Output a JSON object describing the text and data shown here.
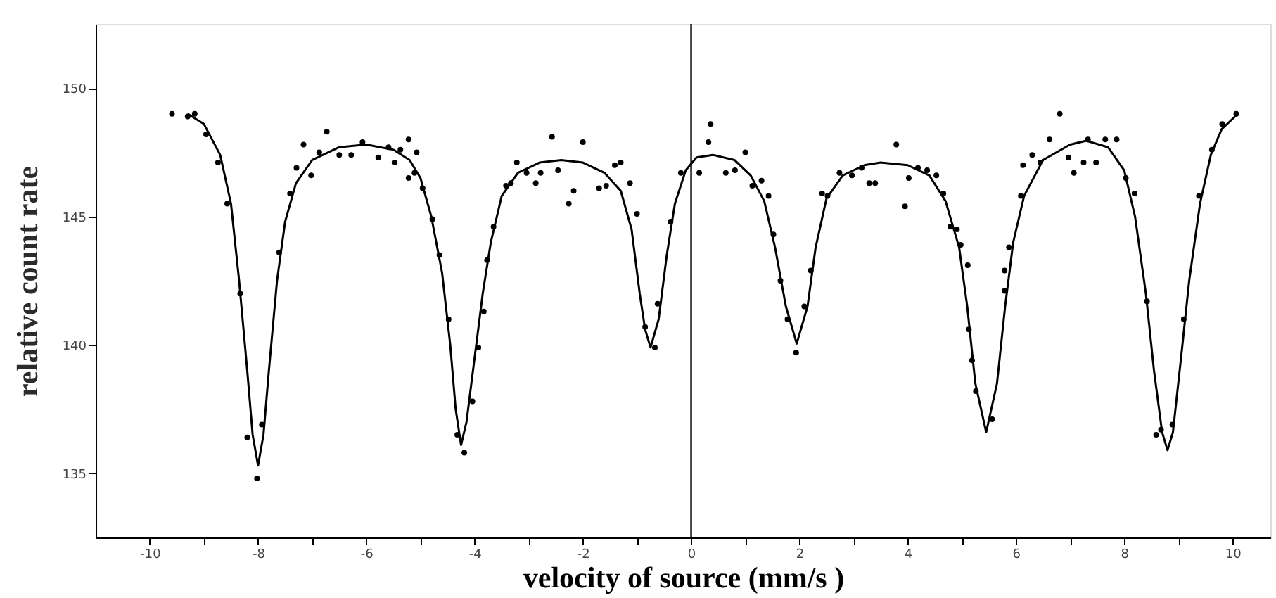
{
  "chart_data": {
    "type": "scatter",
    "xlabel": "velocity of source (mm/s )",
    "ylabel": "relative count rate",
    "xlim": [
      -11,
      10.7
    ],
    "ylim": [
      132.5,
      152.5
    ],
    "xticks": [
      -10,
      {
        "value": -9,
        "label": null
      },
      -8,
      {
        "value": -7,
        "label": null
      },
      -6,
      {
        "value": -5,
        "label": null
      },
      -4,
      {
        "value": -3,
        "label": null
      },
      -2,
      {
        "value": -1,
        "label": null
      },
      0,
      {
        "value": 1,
        "label": null
      },
      2,
      {
        "value": 3,
        "label": null
      },
      4,
      {
        "value": 5,
        "label": null
      },
      6,
      {
        "value": 7,
        "label": null
      },
      8,
      {
        "value": 9,
        "label": null
      },
      10
    ],
    "yticks": [
      150,
      145,
      140,
      135
    ],
    "grid": false,
    "marker": "circle",
    "ref_lines": [
      {
        "axis": "x",
        "value": 0,
        "color": "#000000"
      }
    ],
    "series": [
      {
        "color": "#000000",
        "x": [
          -9.59,
          -9.3,
          -9.17,
          -8.96,
          -8.74,
          -8.57,
          -8.33,
          -8.2,
          -8.02,
          -7.93,
          -7.61,
          -7.41,
          -7.29,
          -7.16,
          -7.02,
          -6.87,
          -6.73,
          -6.5,
          -6.28,
          -6.07,
          -5.78,
          -5.59,
          -5.48,
          -5.37,
          -5.22,
          -5.22,
          -5.07,
          -5.11,
          -4.96,
          -4.78,
          -4.65,
          -4.48,
          -4.32,
          -4.19,
          -4.04,
          -3.93,
          -3.83,
          -3.77,
          -3.65,
          -3.42,
          -3.33,
          -3.22,
          -3.04,
          -2.87,
          -2.78,
          -2.57,
          -2.46,
          -2.26,
          -2.17,
          -2.0,
          -1.7,
          -1.57,
          -1.41,
          -1.3,
          -1.13,
          -1.0,
          -0.85,
          -0.67,
          -0.62,
          -0.38,
          -0.19,
          0.15,
          0.32,
          0.36,
          0.64,
          0.81,
          1.0,
          1.13,
          1.3,
          1.43,
          1.52,
          1.65,
          1.78,
          1.94,
          2.09,
          2.21,
          2.42,
          2.52,
          2.74,
          2.97,
          3.15,
          3.29,
          3.4,
          3.79,
          3.95,
          4.02,
          4.19,
          4.36,
          4.53,
          4.66,
          4.79,
          4.91,
          4.98,
          5.11,
          5.13,
          5.19,
          5.26,
          5.56,
          5.79,
          5.79,
          5.87,
          6.09,
          6.13,
          6.3,
          6.45,
          6.62,
          6.81,
          6.97,
          7.07,
          7.25,
          7.33,
          7.48,
          7.65,
          7.86,
          8.03,
          8.19,
          8.42,
          8.59,
          8.68,
          8.89,
          9.1,
          9.38,
          9.62,
          9.81,
          10.07
        ],
        "values": [
          149.0,
          148.9,
          149.0,
          148.2,
          147.1,
          145.5,
          142.0,
          136.4,
          134.8,
          136.9,
          143.6,
          145.9,
          146.9,
          147.8,
          146.6,
          147.5,
          148.3,
          147.4,
          147.4,
          147.9,
          147.3,
          147.7,
          147.1,
          147.6,
          148.0,
          146.5,
          147.5,
          146.7,
          146.1,
          144.9,
          143.5,
          141.0,
          136.5,
          135.8,
          137.8,
          139.9,
          141.3,
          143.3,
          144.6,
          146.2,
          146.3,
          147.1,
          146.7,
          146.3,
          146.7,
          148.1,
          146.8,
          145.5,
          146.0,
          147.9,
          146.1,
          146.2,
          147.0,
          147.1,
          146.3,
          145.1,
          140.7,
          139.9,
          141.6,
          144.8,
          146.7,
          146.7,
          147.9,
          148.6,
          146.7,
          146.8,
          147.5,
          146.2,
          146.4,
          145.8,
          144.3,
          142.5,
          141.0,
          139.7,
          141.5,
          142.9,
          145.9,
          145.8,
          146.7,
          146.6,
          146.9,
          146.3,
          146.3,
          147.8,
          145.4,
          146.5,
          146.9,
          146.8,
          146.6,
          145.9,
          144.6,
          144.5,
          143.9,
          143.1,
          140.6,
          139.4,
          138.2,
          137.1,
          142.1,
          142.9,
          143.8,
          145.8,
          147.0,
          147.4,
          147.1,
          148.0,
          149.0,
          147.3,
          146.7,
          147.1,
          148.0,
          147.1,
          148.0,
          148.0,
          146.5,
          145.9,
          141.7,
          136.5,
          136.7,
          136.9,
          141.0,
          145.8,
          147.6,
          148.6,
          149.0
        ]
      },
      {
        "type": "line",
        "color": "#000000",
        "line_style": "solid",
        "marker": "none",
        "x": [
          -9.3,
          -9.0,
          -8.7,
          -8.5,
          -8.35,
          -8.2,
          -8.1,
          -8.0,
          -7.9,
          -7.8,
          -7.65,
          -7.5,
          -7.3,
          -7.0,
          -6.5,
          -6.0,
          -5.5,
          -5.2,
          -5.0,
          -4.8,
          -4.6,
          -4.45,
          -4.35,
          -4.25,
          -4.15,
          -4.0,
          -3.85,
          -3.7,
          -3.5,
          -3.2,
          -2.8,
          -2.4,
          -2.0,
          -1.6,
          -1.3,
          -1.1,
          -0.95,
          -0.85,
          -0.75,
          -0.6,
          -0.45,
          -0.3,
          -0.1,
          0.1,
          0.4,
          0.8,
          1.1,
          1.35,
          1.55,
          1.75,
          1.95,
          2.15,
          2.3,
          2.5,
          2.8,
          3.2,
          3.5,
          4.0,
          4.4,
          4.7,
          4.95,
          5.1,
          5.25,
          5.45,
          5.65,
          5.8,
          5.95,
          6.15,
          6.5,
          7.0,
          7.3,
          7.7,
          8.0,
          8.2,
          8.4,
          8.55,
          8.7,
          8.8,
          8.9,
          9.05,
          9.2,
          9.4,
          9.6,
          9.8,
          10.1
        ],
        "values": [
          149.0,
          148.6,
          147.4,
          145.5,
          142.5,
          139.0,
          136.5,
          135.3,
          136.5,
          139.0,
          142.5,
          144.8,
          146.3,
          147.2,
          147.7,
          147.8,
          147.6,
          147.2,
          146.5,
          145.0,
          142.8,
          140.0,
          137.5,
          136.1,
          137.0,
          139.5,
          142.0,
          144.0,
          145.8,
          146.7,
          147.1,
          147.2,
          147.1,
          146.7,
          146.0,
          144.5,
          142.0,
          140.6,
          139.9,
          141.0,
          143.5,
          145.5,
          146.8,
          147.3,
          147.4,
          147.2,
          146.6,
          145.6,
          143.8,
          141.5,
          140.05,
          141.5,
          143.8,
          145.7,
          146.6,
          147.0,
          147.1,
          147.0,
          146.6,
          145.6,
          143.8,
          141.5,
          138.5,
          136.6,
          138.5,
          141.5,
          144.0,
          145.8,
          147.2,
          147.8,
          147.95,
          147.7,
          146.8,
          145.0,
          142.0,
          139.0,
          136.6,
          135.9,
          136.6,
          139.5,
          142.5,
          145.5,
          147.4,
          148.4,
          149.0
        ]
      }
    ]
  }
}
